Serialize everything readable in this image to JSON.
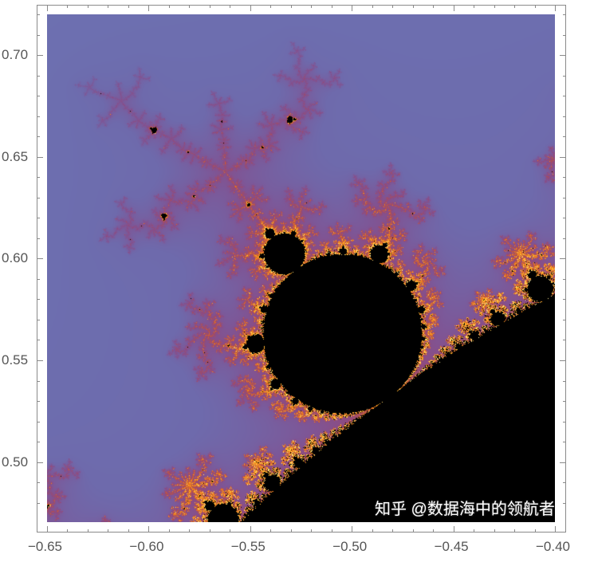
{
  "chart_data": {
    "type": "heatmap",
    "title": "",
    "xlabel": "",
    "ylabel": "",
    "xlim": [
      -0.65,
      -0.4
    ],
    "ylim": [
      0.4705,
      0.72
    ],
    "x_ticks": [
      -0.65,
      -0.6,
      -0.55,
      -0.5,
      -0.45,
      -0.4
    ],
    "x_tick_labels": [
      "−0.65",
      "−0.60",
      "−0.55",
      "−0.50",
      "−0.45",
      "−0.40"
    ],
    "y_ticks": [
      0.5,
      0.55,
      0.6,
      0.65,
      0.7
    ],
    "y_tick_labels": [
      "0.50",
      "0.55",
      "0.60",
      "0.65",
      "0.70"
    ],
    "minor_tick_step": 0.01,
    "grid": false,
    "colors": {
      "interior": "#000000",
      "far": "#6674b4",
      "mid": "#8e4a80",
      "near": "#f07818",
      "boundary": "#ffd040"
    }
  },
  "watermark": "知乎 @数据海中的领航者"
}
